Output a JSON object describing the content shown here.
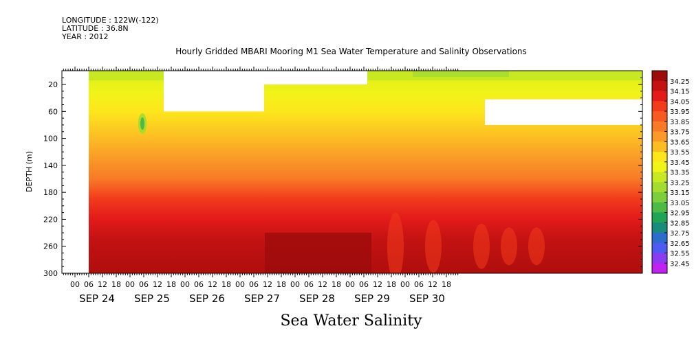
{
  "header": {
    "longitude": "LONGITUDE : 122W(-122)",
    "latitude": "LATITUDE : 36.8N",
    "year": "YEAR : 2012"
  },
  "chart_title": "Hourly Gridded MBARI Mooring M1 Sea Water Temperature and Salinity Observations",
  "variable_title": "Sea Water Salinity",
  "chart_data": {
    "type": "heatmap",
    "title": "Hourly Gridded MBARI Mooring M1 Sea Water Temperature and Salinity Observations",
    "xlabel": "",
    "ylabel": "DEPTH (m)",
    "x_axis": {
      "start": "SEP 23 18:00",
      "end": "SEP 30 23:00",
      "hour_ticks": [
        "00",
        "06",
        "12",
        "18",
        "00",
        "06",
        "12",
        "18",
        "00",
        "06",
        "12",
        "18",
        "00",
        "06",
        "12",
        "18",
        "00",
        "06",
        "12",
        "18",
        "00",
        "06",
        "12",
        "18",
        "00",
        "06",
        "12",
        "18"
      ],
      "day_labels": [
        "SEP 24",
        "SEP 25",
        "SEP 26",
        "SEP 27",
        "SEP 28",
        "SEP 29",
        "SEP 30"
      ]
    },
    "ylim": [
      300,
      0
    ],
    "y_ticks": [
      20,
      60,
      100,
      140,
      180,
      220,
      260,
      300
    ],
    "colorbar": {
      "levels": [
        34.25,
        34.15,
        34.05,
        33.95,
        33.85,
        33.75,
        33.65,
        33.55,
        33.45,
        33.35,
        33.25,
        33.15,
        33.05,
        32.95,
        32.85,
        32.75,
        32.65,
        32.55,
        32.45
      ],
      "colors": [
        "#9e0b0b",
        "#c41212",
        "#e21a1a",
        "#f23a1c",
        "#f65a22",
        "#f87a26",
        "#fa9a28",
        "#fcbc24",
        "#fde61c",
        "#f0f418",
        "#c8e822",
        "#a4dc30",
        "#7cce3c",
        "#4cba44",
        "#22a456",
        "#1a8c7c",
        "#2c6ccc",
        "#4c5cf0",
        "#8c3cf0",
        "#c022f0"
      ]
    },
    "salinity_profile_typical": [
      {
        "depth": 10,
        "salinity": 33.3
      },
      {
        "depth": 30,
        "salinity": 33.4
      },
      {
        "depth": 60,
        "salinity": 33.5
      },
      {
        "depth": 100,
        "salinity": 33.6
      },
      {
        "depth": 130,
        "salinity": 33.7
      },
      {
        "depth": 160,
        "salinity": 33.8
      },
      {
        "depth": 190,
        "salinity": 33.95
      },
      {
        "depth": 220,
        "salinity": 34.05
      },
      {
        "depth": 250,
        "salinity": 34.15
      },
      {
        "depth": 290,
        "salinity": 34.25
      }
    ],
    "features": [
      {
        "time": "SEP 24 19:00",
        "depth": 80,
        "salinity": 32.95
      },
      {
        "time": "SEP 27 22:00",
        "depth": 180,
        "salinity": 33.85
      }
    ]
  }
}
